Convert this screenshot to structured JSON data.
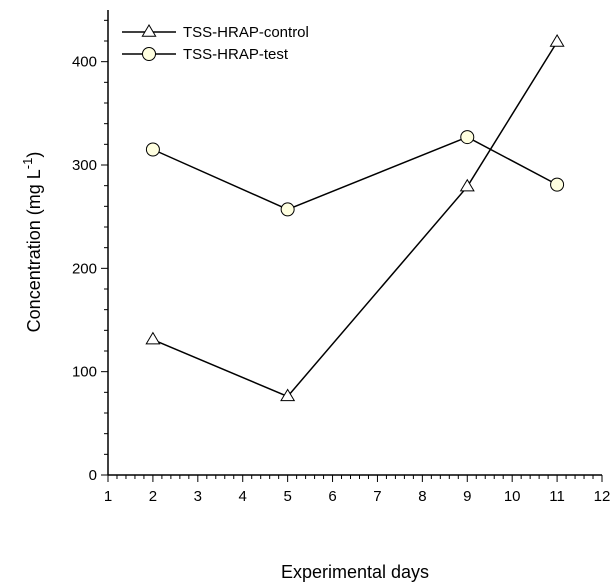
{
  "chart_data": {
    "type": "line",
    "title": "",
    "xlabel": "Experimental days",
    "ylabel": "Concentration (mg L",
    "ylabel_sup": "-1",
    "ylabel_close": ")",
    "xlim": [
      1,
      12
    ],
    "ylim": [
      0,
      450
    ],
    "xticks": [
      1,
      2,
      3,
      4,
      5,
      6,
      7,
      8,
      9,
      10,
      11,
      12
    ],
    "yticks": [
      0,
      100,
      200,
      300,
      400
    ],
    "grid": false,
    "legend_position": "top-left",
    "series": [
      {
        "name": "TSS-HRAP-control",
        "marker": "triangle",
        "x": [
          2,
          5,
          9,
          11
        ],
        "y": [
          131,
          76,
          279,
          419
        ]
      },
      {
        "name": "TSS-HRAP-test",
        "marker": "circle",
        "marker_fill": "#ffffe0",
        "x": [
          2,
          5,
          9,
          11
        ],
        "y": [
          315,
          257,
          327,
          281
        ]
      }
    ]
  }
}
